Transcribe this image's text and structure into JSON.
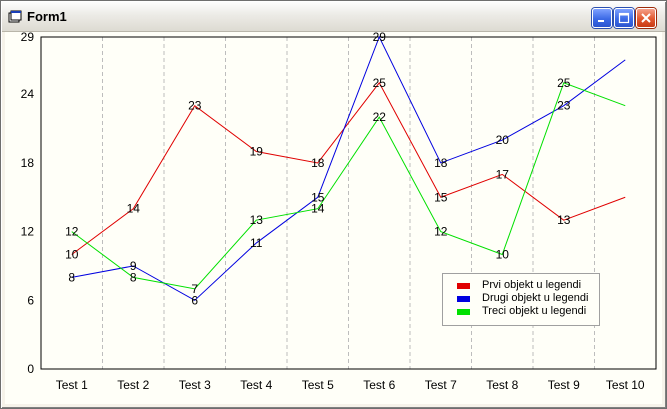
{
  "window": {
    "title": "Form1",
    "controls": {
      "minimize_icon": "minimize-icon",
      "maximize_icon": "maximize-icon",
      "close_icon": "close-icon"
    }
  },
  "chart_data": {
    "type": "line",
    "title": "",
    "xlabel": "",
    "ylabel": "",
    "categories": [
      "Test 1",
      "Test 2",
      "Test 3",
      "Test 4",
      "Test 5",
      "Test 6",
      "Test 7",
      "Test 8",
      "Test 9",
      "Test 10"
    ],
    "yticks": [
      0,
      6,
      12,
      18,
      24,
      29
    ],
    "ylim": [
      0,
      29
    ],
    "grid": "vertical dashed",
    "legend_position": "bottom-right",
    "series": [
      {
        "name": "Prvi objekt u legendi",
        "color": "#e00000",
        "values": [
          10,
          14,
          23,
          19,
          18,
          25,
          15,
          17,
          13,
          15
        ],
        "labels": [
          "10",
          "14",
          "23",
          "19",
          "18",
          "25",
          "15",
          "17",
          "13",
          ""
        ]
      },
      {
        "name": "Drugi objekt u legendi",
        "color": "#0000e0",
        "values": [
          8,
          9,
          6,
          11,
          15,
          29,
          18,
          20,
          23,
          27
        ],
        "labels": [
          "8",
          "9",
          "6",
          "11",
          "15",
          "29",
          "18",
          "20",
          "23",
          ""
        ]
      },
      {
        "name": "Treci objekt u legendi",
        "color": "#00e000",
        "values": [
          12,
          8,
          7,
          13,
          14,
          22,
          12,
          10,
          25,
          23
        ],
        "labels": [
          "12",
          "8",
          "7",
          "13",
          "14",
          "22",
          "12",
          "10",
          "25",
          ""
        ]
      }
    ]
  }
}
